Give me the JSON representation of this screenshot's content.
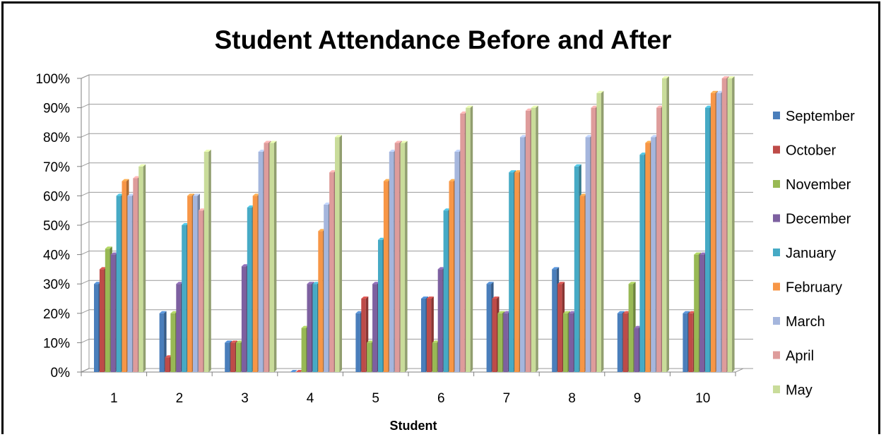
{
  "chart_data": {
    "type": "bar",
    "title": "Student Attendance Before and After",
    "xlabel": "Student",
    "ylabel": "",
    "ylim": [
      0,
      100
    ],
    "y_ticks": [
      "0%",
      "10%",
      "20%",
      "30%",
      "40%",
      "50%",
      "60%",
      "70%",
      "80%",
      "90%",
      "100%"
    ],
    "categories": [
      "1",
      "2",
      "3",
      "4",
      "5",
      "6",
      "7",
      "8",
      "9",
      "10"
    ],
    "legend_position": "right",
    "grid": true,
    "series": [
      {
        "name": "September",
        "color": "#4a7ebb",
        "values": [
          30,
          20,
          10,
          0,
          20,
          25,
          30,
          35,
          20,
          20
        ]
      },
      {
        "name": "October",
        "color": "#be4b48",
        "values": [
          35,
          5,
          10,
          0,
          25,
          25,
          25,
          30,
          20,
          20
        ]
      },
      {
        "name": "November",
        "color": "#98b954",
        "values": [
          42,
          20,
          10,
          15,
          10,
          10,
          20,
          20,
          30,
          40
        ]
      },
      {
        "name": "December",
        "color": "#7d60a0",
        "values": [
          40,
          30,
          36,
          30,
          30,
          35,
          20,
          20,
          15,
          40
        ]
      },
      {
        "name": "January",
        "color": "#46aac5",
        "values": [
          60,
          50,
          56,
          30,
          45,
          55,
          68,
          70,
          74,
          90
        ]
      },
      {
        "name": "February",
        "color": "#f79646",
        "values": [
          65,
          60,
          60,
          48,
          65,
          65,
          68,
          60,
          78,
          95
        ]
      },
      {
        "name": "March",
        "color": "#a5b6dd",
        "values": [
          60,
          60,
          75,
          57,
          75,
          75,
          80,
          80,
          80,
          95
        ]
      },
      {
        "name": "April",
        "color": "#de9c9b",
        "values": [
          66,
          55,
          78,
          68,
          78,
          88,
          89,
          90,
          90,
          100
        ]
      },
      {
        "name": "May",
        "color": "#c9dc9a",
        "values": [
          70,
          75,
          78,
          80,
          78,
          90,
          90,
          95,
          100,
          100
        ]
      }
    ]
  }
}
